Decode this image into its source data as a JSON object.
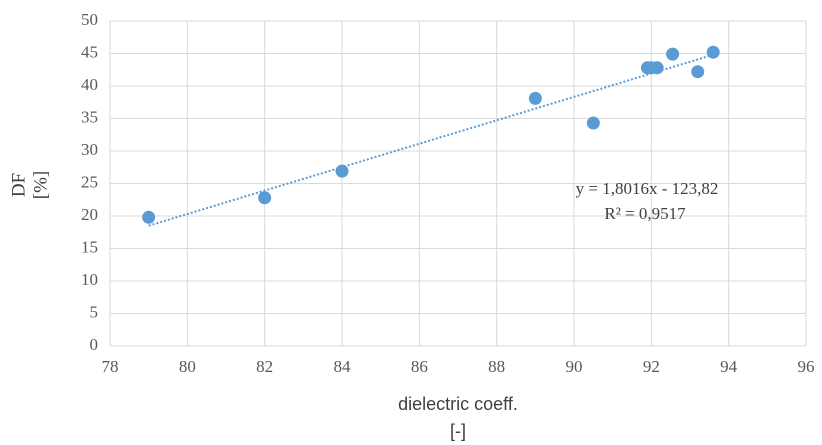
{
  "chart_data": {
    "type": "scatter",
    "xlabel": [
      "dielectric coeff.",
      "[-]"
    ],
    "ylabel": [
      "DF",
      "[%]"
    ],
    "x": [
      79,
      82,
      84,
      89,
      90.5,
      91.9,
      92.0,
      92.15,
      92.55,
      93.2,
      93.6
    ],
    "series": [
      {
        "name": "DF",
        "color": "#5b9bd5",
        "values": [
          19.8,
          22.8,
          26.9,
          38.1,
          34.3,
          42.8,
          42.8,
          42.8,
          44.9,
          42.2,
          45.2
        ]
      }
    ],
    "trendline": {
      "equation": "y = 1,8016x - 123,82",
      "r_squared": "R² = 0,9517",
      "slope": 1.8016,
      "intercept": -123.82
    },
    "xlim": [
      78,
      96
    ],
    "xticks": [
      78,
      80,
      82,
      84,
      86,
      88,
      90,
      92,
      94,
      96
    ],
    "ylim": [
      0,
      50
    ],
    "yticks": [
      0,
      5,
      10,
      15,
      20,
      25,
      30,
      35,
      40,
      45,
      50
    ],
    "grid": true
  }
}
